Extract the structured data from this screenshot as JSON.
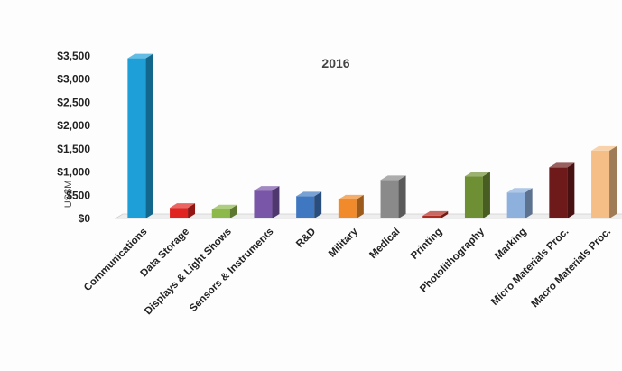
{
  "chart_data": {
    "type": "bar",
    "title": "2016",
    "ylabel": "US$M",
    "xlabel": "",
    "ylim": [
      0,
      3500
    ],
    "yticks": [
      0,
      500,
      1000,
      1500,
      2000,
      2500,
      3000,
      3500
    ],
    "ytick_labels": [
      "$0",
      "$500",
      "$1,000",
      "$1,500",
      "$2,000",
      "$2,500",
      "$3,000",
      "$3,500"
    ],
    "grid": false,
    "style": "3d-bars",
    "categories": [
      "Communications",
      "Data Storage",
      "Displays & Light Shows",
      "Sensors & Instruments",
      "R&D",
      "Military",
      "Medical",
      "Printing",
      "Photolithography",
      "Marking",
      "Micro Materials Proc.",
      "Macro Materials Proc."
    ],
    "values": [
      3450,
      230,
      200,
      600,
      480,
      410,
      830,
      60,
      910,
      560,
      1100,
      1460
    ],
    "colors": [
      "#1f9fd8",
      "#e0241f",
      "#8db84a",
      "#7a56a8",
      "#3f78c0",
      "#f08a2a",
      "#8a8a8a",
      "#b02a20",
      "#6f8f35",
      "#8eb0dc",
      "#6e1a1a",
      "#f5be86"
    ]
  }
}
